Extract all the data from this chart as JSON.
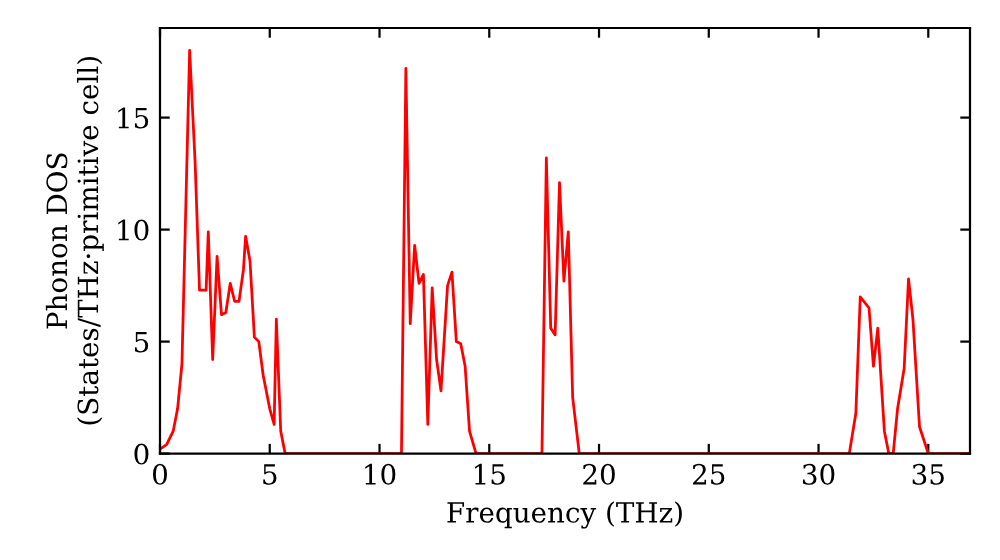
{
  "chart_data": {
    "type": "line",
    "xlabel": "Frequency (THz)",
    "ylabel": "Phonon DOS\n(States/THz·primitive cell)",
    "xlim": [
      0,
      36.9
    ],
    "ylim": [
      0,
      19
    ],
    "xticks": [
      0,
      5,
      10,
      15,
      20,
      25,
      30,
      35
    ],
    "yticks": [
      0,
      5,
      10,
      15
    ],
    "grid": false,
    "marker": "none",
    "line_style": "solid",
    "series": [
      {
        "color": "#ff0000",
        "x": [
          0,
          0.3,
          0.6,
          0.8,
          1.0,
          1.2,
          1.35,
          1.6,
          1.8,
          2.1,
          2.2,
          2.4,
          2.6,
          2.8,
          3.0,
          3.2,
          3.4,
          3.6,
          3.8,
          3.9,
          4.1,
          4.3,
          4.5,
          4.7,
          5.0,
          5.2,
          5.3,
          5.5,
          5.7,
          11.0,
          11.2,
          11.4,
          11.6,
          11.8,
          12.0,
          12.2,
          12.4,
          12.6,
          12.8,
          13.1,
          13.3,
          13.5,
          13.7,
          13.9,
          14.1,
          14.4,
          17.4,
          17.6,
          17.8,
          18.0,
          18.2,
          18.4,
          18.6,
          18.8,
          19.1,
          31.4,
          31.7,
          31.9,
          32.3,
          32.5,
          32.7,
          33.0,
          33.2,
          33.4,
          33.6,
          33.9,
          34.1,
          34.3,
          34.6,
          35.0,
          36.9
        ],
        "values": [
          0.2,
          0.4,
          1,
          2,
          4,
          12,
          18,
          13,
          7.3,
          7.3,
          9.9,
          4.2,
          8.8,
          6.2,
          6.3,
          7.6,
          6.8,
          6.8,
          8.2,
          9.7,
          8.6,
          5.2,
          5.0,
          3.5,
          2.0,
          1.3,
          6.0,
          1.0,
          0,
          0,
          17.2,
          5.8,
          9.3,
          7.6,
          8.0,
          1.3,
          7.4,
          4.2,
          2.8,
          7.5,
          8.1,
          5.0,
          4.9,
          3.9,
          1.0,
          0,
          0,
          13.2,
          5.6,
          5.3,
          12.1,
          7.7,
          9.9,
          2.5,
          0,
          0,
          1.8,
          7.0,
          6.5,
          3.9,
          5.6,
          1.0,
          0,
          0,
          2.0,
          3.8,
          7.8,
          6.0,
          1.2,
          0,
          0
        ]
      }
    ]
  }
}
